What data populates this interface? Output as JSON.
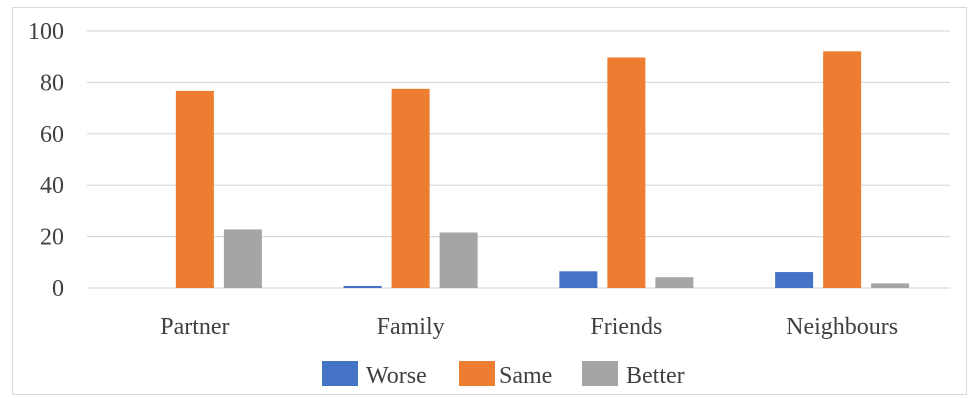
{
  "chart_data": {
    "type": "bar",
    "categories": [
      "Partner",
      "Family",
      "Friends",
      "Neighbours"
    ],
    "series": [
      {
        "name": "Worse",
        "values": [
          0,
          0.8,
          6.5,
          6.2
        ],
        "color": "#4472C4"
      },
      {
        "name": "Same",
        "values": [
          76.7,
          77.5,
          89.7,
          92.1
        ],
        "color": "#ED7D31"
      },
      {
        "name": "Better",
        "values": [
          22.8,
          21.6,
          4.2,
          1.8
        ],
        "color": "#A5A5A5"
      }
    ],
    "yticks": [
      0,
      20,
      40,
      60,
      80,
      100
    ],
    "ylim": [
      0,
      100
    ],
    "grid": true,
    "legend_position": "bottom",
    "gridline_color": "#d9d9d9",
    "axis_color": "#d9d9d9"
  }
}
